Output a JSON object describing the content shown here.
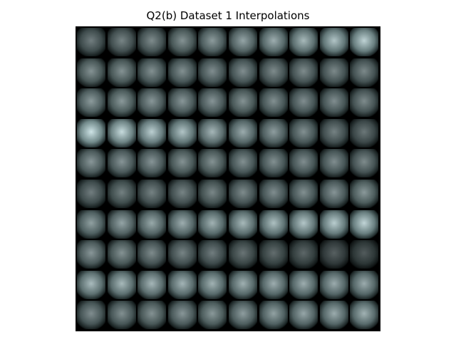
{
  "title": "Q2(b) Dataset 1 Interpolations",
  "grid": {
    "rows": 10,
    "cols": 10,
    "tint": [
      206,
      228,
      230
    ],
    "brightness": [
      [
        0.55,
        0.58,
        0.61,
        0.64,
        0.68,
        0.72,
        0.76,
        0.81,
        0.86,
        0.92
      ],
      [
        0.64,
        0.64,
        0.63,
        0.63,
        0.62,
        0.62,
        0.61,
        0.61,
        0.6,
        0.6
      ],
      [
        0.68,
        0.67,
        0.66,
        0.66,
        0.65,
        0.64,
        0.63,
        0.62,
        0.62,
        0.61
      ],
      [
        1.0,
        0.96,
        0.91,
        0.86,
        0.8,
        0.75,
        0.69,
        0.63,
        0.57,
        0.52
      ],
      [
        0.66,
        0.65,
        0.65,
        0.64,
        0.64,
        0.63,
        0.63,
        0.62,
        0.62,
        0.61
      ],
      [
        0.55,
        0.56,
        0.57,
        0.58,
        0.59,
        0.61,
        0.62,
        0.63,
        0.65,
        0.67
      ],
      [
        0.7,
        0.72,
        0.74,
        0.76,
        0.78,
        0.81,
        0.84,
        0.87,
        0.9,
        0.93
      ],
      [
        0.66,
        0.64,
        0.61,
        0.58,
        0.55,
        0.51,
        0.48,
        0.45,
        0.42,
        0.4
      ],
      [
        0.82,
        0.81,
        0.8,
        0.79,
        0.78,
        0.77,
        0.76,
        0.76,
        0.75,
        0.75
      ],
      [
        0.62,
        0.63,
        0.64,
        0.66,
        0.67,
        0.69,
        0.71,
        0.73,
        0.75,
        0.78
      ]
    ]
  }
}
